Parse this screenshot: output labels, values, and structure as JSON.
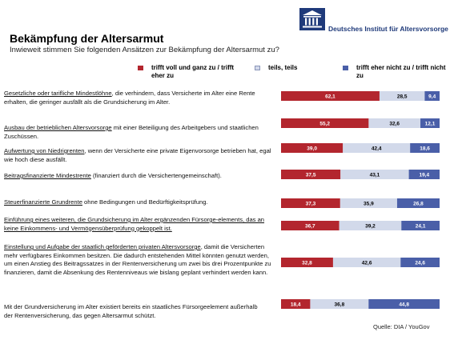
{
  "brand": {
    "name": "Deutsches Institut für Altersvorsorge"
  },
  "header": {
    "title": "Bekämpfung der Altersarmut",
    "subtitle": "Inwieweit stimmen Sie folgenden Ansätzen zur Bekämpfung der Altersarmut zu?"
  },
  "legend": [
    {
      "label": "trifft voll und ganz zu / trifft eher zu",
      "color": "#b3262e"
    },
    {
      "label": "teils, teils",
      "color": "#d2d9ea"
    },
    {
      "label": "trifft eher nicht zu / trifft nicht zu",
      "color": "#4a5fa8"
    }
  ],
  "questions": [
    {
      "lead": "Gesetzliche oder tarifliche Mindestlöhne",
      "rest": ", die verhindern, dass Versicherte im Alter eine Rente erhalten, die geringer ausfällt als die Grundsicherung im Alter."
    },
    {
      "lead": "Ausbau der betrieblichen Altersvorsorge",
      "rest": " mit einer Beteiligung des Arbeitgebers und staatlichen Zuschüssen."
    },
    {
      "lead": "Aufwertung von Niedrigrenten",
      "rest": ", wenn der Versicherte eine private Eigenvorsorge betrieben hat, egal wie hoch diese ausfällt."
    },
    {
      "lead": "Beitragsfinanzierte Mindestrente",
      "rest": " (finanziert durch die Versichertengemeinschaft)."
    },
    {
      "lead": "Steuerfinanzierte Grundrente",
      "rest": " ohne Bedingungen und Bedürftigkeitsprüfung."
    },
    {
      "lead": "Einführung eines weiteren, die Grundsicherung im Alter ergänzenden Fürsorge-elements, das an keine Einkommens- und Vermögensüberprüfung gekoppelt ist.",
      "rest": ""
    },
    {
      "lead": "Einstellung und Aufgabe der staatlich geförderten privaten Altersvorsorge",
      "rest": ", damit die Versicherten mehr verfügbares Einkommen besitzen. Die dadurch entstehenden Mittel könnten genutzt werden, um einen Anstieg des Beitragssatzes in der Rentenversicherung um zwei bis drei Prozentpunkte zu finanzieren, damit die Absenkung des Rentenniveaus wie bislang geplant verhindert werden kann."
    },
    {
      "lead": "",
      "rest": "Mit der Grundversicherung im Alter existiert bereits ein staatliches Fürsorgeelement außerhalb der Rentenversicherung, das gegen Altersarmut schützt."
    }
  ],
  "chart_data": {
    "type": "bar",
    "stacked": true,
    "orientation": "horizontal",
    "series": [
      {
        "name": "trifft voll und ganz zu / trifft eher zu",
        "values": [
          62.1,
          55.2,
          39.0,
          37.5,
          37.3,
          36.7,
          32.8,
          18.4
        ],
        "labels": [
          "62,1",
          "55,2",
          "39,0",
          "37,5",
          "37,3",
          "36,7",
          "32,8",
          "18,4"
        ]
      },
      {
        "name": "teils, teils",
        "values": [
          28.5,
          32.6,
          42.4,
          43.1,
          35.9,
          39.2,
          42.6,
          36.8
        ],
        "labels": [
          "28,5",
          "32,6",
          "42,4",
          "43,1",
          "35,9",
          "39,2",
          "42,6",
          "36,8"
        ]
      },
      {
        "name": "trifft eher nicht zu / trifft nicht zu",
        "values": [
          9.4,
          12.1,
          18.6,
          19.4,
          26.8,
          24.1,
          24.6,
          44.8
        ],
        "labels": [
          "9,4",
          "12,1",
          "18,6",
          "19,4",
          "26,8",
          "24,1",
          "24,6",
          "44,8"
        ]
      }
    ],
    "xlim": [
      0,
      100
    ]
  },
  "footer": {
    "source": "Quelle: DIA / YouGov"
  }
}
